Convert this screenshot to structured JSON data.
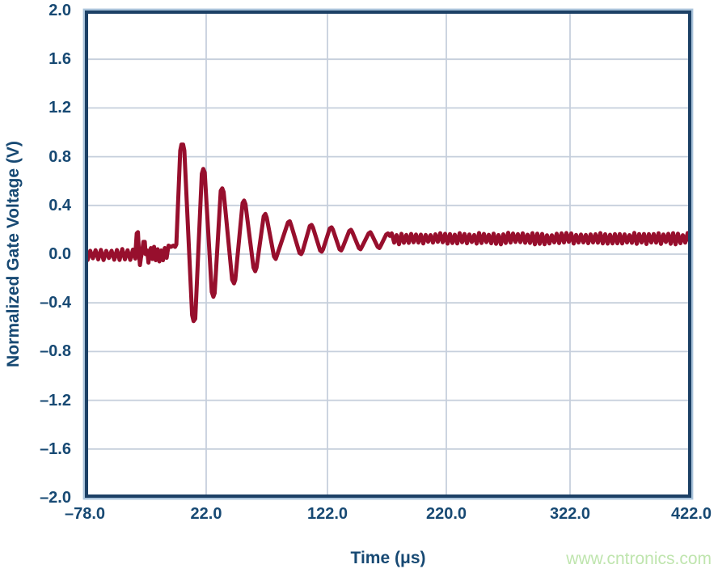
{
  "watermark": {
    "text": "www.cntronics.com",
    "color": "#bfe5ae"
  },
  "chart_data": {
    "type": "line",
    "title": "",
    "xlabel": "Time (μs)",
    "ylabel": "Normalized Gate Voltage (V)",
    "xlim": [
      -78,
      422
    ],
    "ylim": [
      -2.0,
      2.0
    ],
    "grid": true,
    "legend": false,
    "x_ticks": [
      {
        "value": -78,
        "label": "–78.0"
      },
      {
        "value": 22,
        "label": "22.0"
      },
      {
        "value": 122,
        "label": "122.0"
      },
      {
        "value": 220,
        "label": "220.0"
      },
      {
        "value": 322,
        "label": "322.0"
      },
      {
        "value": 422,
        "label": "422.0"
      }
    ],
    "y_ticks": [
      {
        "value": 2.0,
        "label": "2.0"
      },
      {
        "value": 1.6,
        "label": "1.6"
      },
      {
        "value": 1.2,
        "label": "1.2"
      },
      {
        "value": 0.8,
        "label": "0.8"
      },
      {
        "value": 0.4,
        "label": "0.4"
      },
      {
        "value": 0.0,
        "label": "0.0"
      },
      {
        "value": -0.4,
        "label": "–0.4"
      },
      {
        "value": -0.8,
        "label": "–0.8"
      },
      {
        "value": -1.2,
        "label": "–1.2"
      },
      {
        "value": -1.6,
        "label": "–1.6"
      },
      {
        "value": -2.0,
        "label": "–2.0"
      }
    ],
    "colors": {
      "line": "#970f2d",
      "axis": "#1c4065",
      "grid": "#c6cfdc",
      "halo": "#a9c3da",
      "tick_text": "#174973"
    },
    "series": [
      {
        "name": "normalized-gate-voltage",
        "stroke_width": 5,
        "segments": [
          {
            "kind": "noise",
            "t0": -78,
            "t1": -36.5,
            "base": -0.005,
            "amp": 0.048,
            "step": 2.2
          },
          {
            "kind": "points",
            "pts": [
              [
                -36.3,
                0.02
              ],
              [
                -35.3,
                0.17
              ],
              [
                -34.3,
                0.18
              ],
              [
                -33.4,
                0.0
              ],
              [
                -32.6,
                -0.09
              ],
              [
                -31.8,
                -0.03
              ],
              [
                -30.8,
                0.02
              ],
              [
                -29.8,
                0.1
              ],
              [
                -28.6,
                0.1
              ],
              [
                -27.9,
                0.0
              ],
              [
                -26.6,
                0.03
              ],
              [
                -25.6,
                -0.07
              ],
              [
                -24.6,
                0.02
              ],
              [
                -23.6,
                0.05
              ],
              [
                -22.4,
                -0.04
              ],
              [
                -21.0,
                0.06
              ],
              [
                -19.6,
                -0.05
              ],
              [
                -18.1,
                0.04
              ],
              [
                -16.6,
                -0.06
              ],
              [
                -15.1,
                0.03
              ],
              [
                -13.6,
                -0.05
              ],
              [
                -12.1,
                0.05
              ],
              [
                -10.6,
                -0.03
              ],
              [
                -9.1,
                0.07
              ],
              [
                -7.1,
                0.06
              ],
              [
                -5.1,
                0.07
              ],
              [
                -3.6,
                0.06
              ],
              [
                -2.6,
                0.08
              ]
            ]
          },
          {
            "kind": "points",
            "pts": [
              [
                0.6,
                0.85
              ],
              [
                1.6,
                0.9
              ],
              [
                3.0,
                0.9
              ],
              [
                4.0,
                0.85
              ],
              [
                10.4,
                -0.5
              ],
              [
                11.6,
                -0.55
              ],
              [
                13.0,
                -0.53
              ],
              [
                18.4,
                0.66
              ],
              [
                19.6,
                0.7
              ],
              [
                20.8,
                0.67
              ],
              [
                26.6,
                -0.31
              ],
              [
                27.9,
                -0.35
              ],
              [
                29.0,
                -0.32
              ],
              [
                34.0,
                0.52
              ],
              [
                35.3,
                0.54
              ],
              [
                36.4,
                0.51
              ],
              [
                43.4,
                -0.21
              ],
              [
                44.9,
                -0.24
              ],
              [
                46.0,
                -0.21
              ],
              [
                52.0,
                0.42
              ],
              [
                53.3,
                0.44
              ],
              [
                54.4,
                0.41
              ],
              [
                61.0,
                -0.11
              ],
              [
                62.4,
                -0.14
              ],
              [
                63.5,
                -0.11
              ],
              [
                69.4,
                0.31
              ],
              [
                70.8,
                0.33
              ],
              [
                71.9,
                0.3
              ],
              [
                77.9,
                -0.02
              ],
              [
                79.3,
                -0.04
              ],
              [
                80.4,
                -0.01
              ],
              [
                89.4,
                0.26
              ],
              [
                90.9,
                0.27
              ],
              [
                92.0,
                0.24
              ],
              [
                98.9,
                0.01
              ],
              [
                100.3,
                0.0
              ],
              [
                101.4,
                0.02
              ],
              [
                107.4,
                0.23
              ],
              [
                108.9,
                0.24
              ],
              [
                110.0,
                0.22
              ],
              [
                115.9,
                0.03
              ],
              [
                117.3,
                0.02
              ],
              [
                118.4,
                0.04
              ],
              [
                123.9,
                0.21
              ],
              [
                125.4,
                0.22
              ],
              [
                126.5,
                0.2
              ],
              [
                131.9,
                0.04
              ],
              [
                133.3,
                0.03
              ],
              [
                134.4,
                0.05
              ],
              [
                139.9,
                0.19
              ],
              [
                141.4,
                0.2
              ],
              [
                142.5,
                0.18
              ],
              [
                147.9,
                0.05
              ],
              [
                149.3,
                0.04
              ],
              [
                150.4,
                0.06
              ],
              [
                155.9,
                0.17
              ],
              [
                157.4,
                0.18
              ],
              [
                158.5,
                0.16
              ],
              [
                163.4,
                0.06
              ],
              [
                164.8,
                0.05
              ],
              [
                165.9,
                0.07
              ],
              [
                170.4,
                0.16
              ],
              [
                171.9,
                0.17
              ],
              [
                173.4,
                0.15
              ]
            ]
          },
          {
            "kind": "noise",
            "t0": 175,
            "t1": 422,
            "base": 0.128,
            "amp": 0.048,
            "step": 2.0
          }
        ]
      }
    ]
  }
}
